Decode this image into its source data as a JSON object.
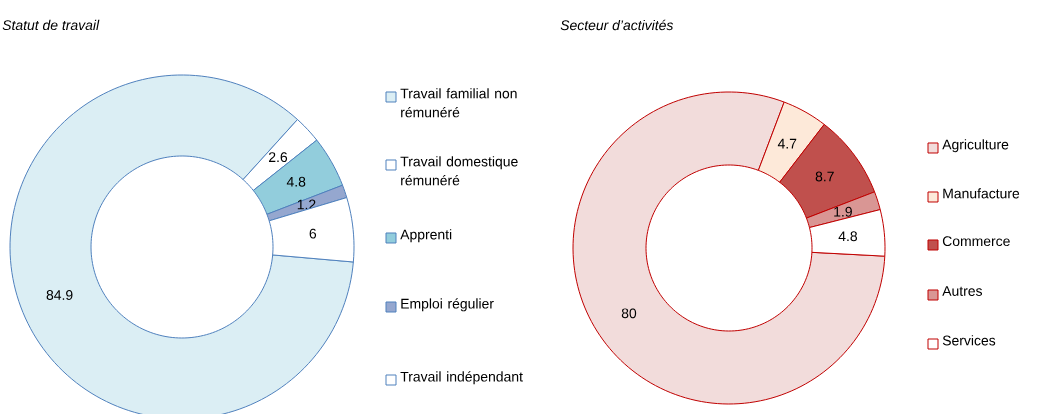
{
  "chart_data": [
    {
      "type": "donut",
      "title": "Statut de travail",
      "categories": [
        "Travail familial non rémunéré",
        "Travail domestique rémunéré",
        "Apprenti",
        "Emploi régulier",
        "Travail indépendant"
      ],
      "values": [
        84.9,
        2.6,
        4.8,
        1.2,
        6
      ],
      "colors": [
        "#dbeef4",
        "#ffffff",
        "#92cddc",
        "#95a7cf",
        "#ffffff"
      ],
      "data_labels": true,
      "legend": "right"
    },
    {
      "type": "donut",
      "title": "Secteur d’activités",
      "categories": [
        "Agriculture",
        "Manufacture",
        "Commerce",
        "Autres",
        "Services"
      ],
      "values": [
        80,
        4.7,
        8.7,
        1.9,
        4.8
      ],
      "colors": [
        "#f2dcdb",
        "#fde9d9",
        "#c0504d",
        "#d99694",
        "#ffffff"
      ],
      "data_labels": true,
      "legend": "right"
    }
  ]
}
